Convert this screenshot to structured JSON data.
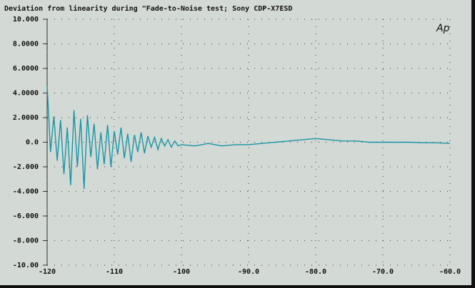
{
  "chart_data": {
    "type": "line",
    "title": "Deviation from linearity during \"Fade-to-Noise test; Sony CDP-X7ESD",
    "logo": "Ap",
    "x": [
      -120,
      -119.5,
      -119,
      -118.5,
      -118,
      -117.5,
      -117,
      -116.5,
      -116,
      -115.5,
      -115,
      -114.5,
      -114,
      -113.5,
      -113,
      -112.5,
      -112,
      -111.5,
      -111,
      -110.5,
      -110,
      -109.5,
      -109,
      -108.5,
      -108,
      -107.5,
      -107,
      -106.5,
      -106,
      -105.5,
      -105,
      -104.5,
      -104,
      -103.5,
      -103,
      -102.5,
      -102,
      -101.5,
      -101,
      -100.5,
      -100,
      -98,
      -96,
      -94,
      -92,
      -90,
      -88,
      -86,
      -84,
      -82,
      -80,
      -78,
      -76,
      -74,
      -72,
      -70,
      -68,
      -66,
      -64,
      -62,
      -60
    ],
    "series": [
      {
        "color": "#1896a6",
        "values": [
          4.6,
          -0.8,
          2.1,
          -1.5,
          1.8,
          -2.6,
          1.2,
          -3.5,
          2.6,
          -2.0,
          1.9,
          -3.8,
          2.2,
          -1.2,
          1.5,
          -2.2,
          0.8,
          -1.8,
          1.4,
          -2.0,
          0.9,
          -1.0,
          1.2,
          -1.3,
          0.7,
          -1.6,
          0.6,
          -0.8,
          0.8,
          -0.9,
          0.5,
          -0.4,
          0.4,
          -0.6,
          0.3,
          -0.3,
          0.2,
          -0.4,
          0.1,
          -0.3,
          -0.2,
          -0.3,
          -0.1,
          -0.3,
          -0.2,
          -0.2,
          -0.1,
          0.0,
          0.1,
          0.2,
          0.3,
          0.2,
          0.1,
          0.1,
          0.0,
          0.0,
          0.0,
          0.0,
          -0.05,
          -0.05,
          -0.1
        ]
      }
    ],
    "xlim": [
      -120,
      -60
    ],
    "xticks": [
      -120,
      -110,
      -100,
      {
        "value": -90,
        "label": "-90.0"
      },
      {
        "value": -80,
        "label": "-80.0"
      },
      {
        "value": -70,
        "label": "-70.0"
      },
      {
        "value": -60,
        "label": "-60.0"
      }
    ],
    "ylim": [
      -10,
      10
    ],
    "yticks": [
      {
        "value": 10,
        "label": "10.000"
      },
      {
        "value": 8,
        "label": "8.0000"
      },
      {
        "value": 6,
        "label": "6.0000"
      },
      {
        "value": 4,
        "label": "4.0000"
      },
      {
        "value": 2,
        "label": "2.0000"
      },
      {
        "value": 0,
        "label": "0.0"
      },
      {
        "value": -2,
        "label": "-2.000"
      },
      {
        "value": -4,
        "label": "-4.000"
      },
      {
        "value": -6,
        "label": "-6.000"
      },
      {
        "value": -8,
        "label": "-8.000"
      },
      {
        "value": -10,
        "label": "-10.00"
      }
    ],
    "grid": true
  }
}
